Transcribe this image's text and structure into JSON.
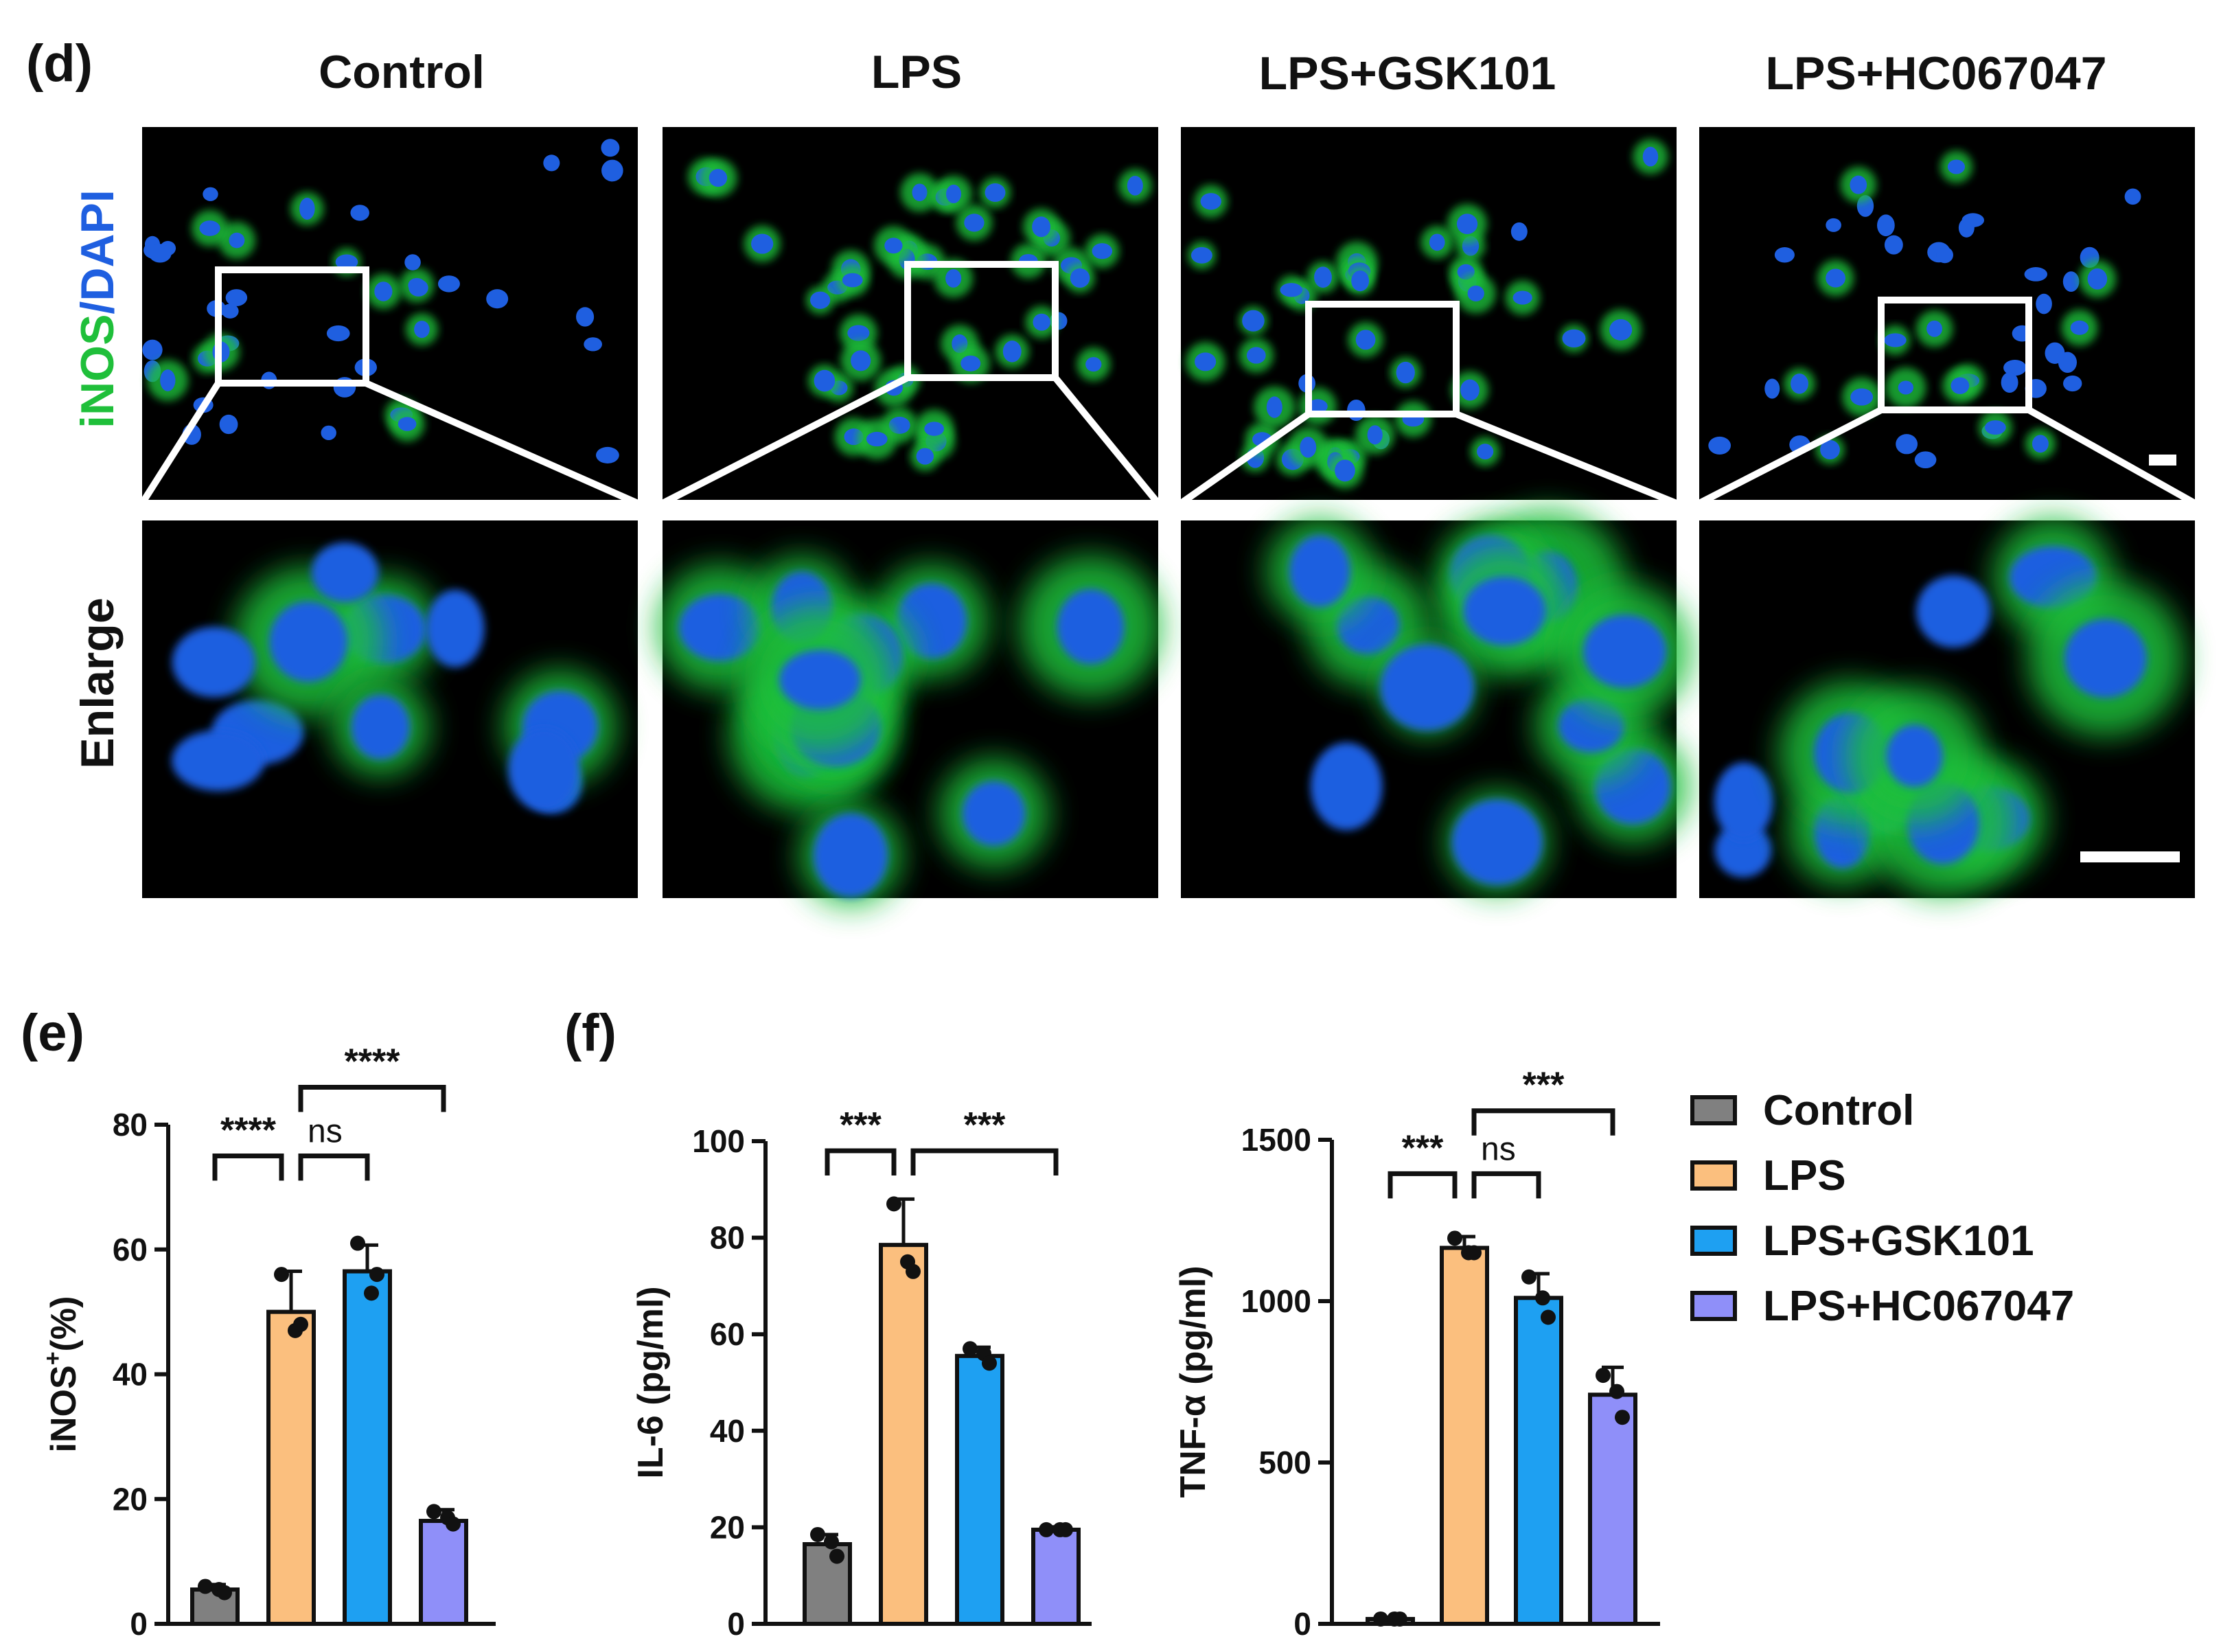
{
  "panels": {
    "d": "(d)",
    "e": "(e)",
    "f": "(f)"
  },
  "micrographs": {
    "columns": [
      "Control",
      "LPS",
      "LPS+GSK101",
      "LPS+HC067047"
    ],
    "row_labels": {
      "top_part1": "iNOS",
      "top_sep": "/",
      "top_part2": "DAPI",
      "bottom": "Enlarge"
    },
    "colors": {
      "inos": "#1fbf3a",
      "dapi": "#1f5fe0"
    }
  },
  "legend": [
    "Control",
    "LPS",
    "LPS+GSK101",
    "LPS+HC067047"
  ],
  "series_colors": [
    "#808080",
    "#fbbf7e",
    "#1ea0f2",
    "#8f8ff9"
  ],
  "chart_data": [
    {
      "panel": "(e)",
      "type": "bar",
      "categories": [
        "Control",
        "LPS",
        "LPS+GSK101",
        "LPS+HC067047"
      ],
      "values": [
        5.5,
        50,
        56.5,
        16.5
      ],
      "errors": [
        0.8,
        6.5,
        4.2,
        1.8
      ],
      "points": [
        [
          6,
          5.5,
          5
        ],
        [
          56,
          47,
          48
        ],
        [
          61,
          53,
          56
        ],
        [
          18,
          17,
          16
        ]
      ],
      "ylabel_main": "iNOS",
      "ylabel_sup": "+",
      "ylabel_rest": "(%)",
      "ylim": [
        0,
        80
      ],
      "yticks": [
        0,
        20,
        40,
        60,
        80
      ],
      "comparisons": [
        {
          "from": 0,
          "to": 1,
          "label": "****",
          "y": 75
        },
        {
          "from": 1,
          "to": 2,
          "label": "ns",
          "y": 75
        },
        {
          "from": 1,
          "to": 3,
          "label": "****",
          "y": 86
        }
      ]
    },
    {
      "panel": "(f)",
      "type": "bar",
      "categories": [
        "Control",
        "LPS",
        "LPS+GSK101",
        "LPS+HC067047"
      ],
      "values": [
        16.5,
        78.5,
        55.5,
        19.5
      ],
      "errors": [
        2.0,
        9.5,
        1.8,
        0.6
      ],
      "points": [
        [
          18.5,
          17,
          14
        ],
        [
          87,
          75,
          73
        ],
        [
          57,
          56,
          54
        ],
        [
          19.5,
          19.5,
          19.5
        ]
      ],
      "ylabel": "IL-6 (pg/ml)",
      "ylim": [
        0,
        100
      ],
      "yticks": [
        0,
        20,
        40,
        60,
        80,
        100
      ],
      "comparisons": [
        {
          "from": 0,
          "to": 1,
          "label": "***",
          "y": 98
        },
        {
          "from": 1,
          "to": 3,
          "label": "***",
          "y": 98
        }
      ]
    },
    {
      "panel": "(f)",
      "type": "bar",
      "categories": [
        "Control",
        "LPS",
        "LPS+GSK101",
        "LPS+HC067047"
      ],
      "values": [
        15,
        1165,
        1010,
        710
      ],
      "errors": [
        5,
        35,
        75,
        85
      ],
      "points": [
        [
          15,
          15,
          15
        ],
        [
          1195,
          1150,
          1150
        ],
        [
          1075,
          1010,
          950
        ],
        [
          770,
          720,
          640
        ]
      ],
      "ylabel": "TNF-α (pg/ml)",
      "ylim": [
        0,
        1500
      ],
      "yticks": [
        0,
        500,
        1000,
        1500
      ],
      "comparisons": [
        {
          "from": 0,
          "to": 1,
          "label": "***",
          "y": 1395
        },
        {
          "from": 1,
          "to": 2,
          "label": "ns",
          "y": 1395
        },
        {
          "from": 1,
          "to": 3,
          "label": "***",
          "y": 1590
        }
      ]
    }
  ]
}
